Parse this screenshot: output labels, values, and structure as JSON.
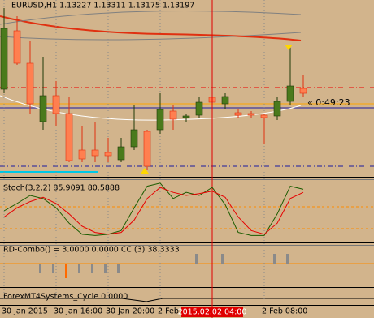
{
  "chart_data": [
    {
      "type": "candlestick",
      "title": "EURUSD,H1  1.13227 1.13311 1.13175 1.13197",
      "categories": [
        "30 Jan 2015",
        null,
        null,
        null,
        "30 Jan 16:00",
        null,
        null,
        null,
        "30 Jan 20:00",
        null,
        null,
        null,
        "2 Feb",
        null,
        null,
        null,
        null,
        null,
        null,
        null,
        "2 Feb 08:00",
        null,
        null,
        null
      ],
      "open": [
        1.13222,
        1.13582,
        1.13382,
        1.13022,
        1.13182,
        1.13072,
        1.12847,
        1.12847,
        1.12832,
        1.12787,
        1.12867,
        1.12962,
        1.12972,
        1.13087,
        1.13047,
        1.13062,
        1.13172,
        1.13132,
        1.13077,
        1.13072,
        1.13062,
        1.13057,
        1.13147,
        1.13227
      ],
      "high": [
        1.13722,
        1.13672,
        1.13522,
        1.13422,
        1.13272,
        1.13172,
        1.12997,
        1.13022,
        1.12922,
        1.12922,
        1.13122,
        1.12972,
        1.13197,
        1.13122,
        1.13072,
        1.13172,
        1.13197,
        1.13197,
        1.13097,
        1.13087,
        1.13072,
        1.13172,
        1.13497,
        1.13311
      ],
      "low": [
        1.13197,
        1.13372,
        1.13072,
        1.12972,
        1.12997,
        1.12772,
        1.12772,
        1.12772,
        1.12772,
        1.12772,
        1.12847,
        1.12722,
        1.12947,
        1.12972,
        1.13022,
        1.13047,
        1.13122,
        1.13097,
        1.13047,
        1.13047,
        1.12882,
        1.13032,
        1.13122,
        1.13175
      ],
      "close": [
        1.13597,
        1.13382,
        1.13132,
        1.13182,
        1.13072,
        1.12782,
        1.12792,
        1.12812,
        1.12812,
        1.12867,
        1.12972,
        1.12747,
        1.13097,
        1.13037,
        1.13057,
        1.13142,
        1.13142,
        1.13177,
        1.13062,
        1.13062,
        1.13047,
        1.13147,
        1.13242,
        1.13197
      ],
      "ylim": [
        1.12697,
        1.13772
      ],
      "up_color": "#4a7a1c",
      "down_color": "#ff7f50",
      "grid": true,
      "crosshair_index": 16,
      "crosshair_label": "2015.02.02 04:00",
      "timer": "« 0:49:23"
    },
    {
      "type": "line",
      "title": "Stoch(3,2,2) 85.9091 80.5888",
      "ylim": [
        0,
        100
      ],
      "series": [
        {
          "color": "#1a5c00",
          "values": [
            50,
            62,
            75,
            70,
            55,
            30,
            12,
            10,
            12,
            18,
            55,
            90,
            95,
            70,
            80,
            75,
            88,
            60,
            15,
            10,
            10,
            45,
            90,
            85
          ]
        },
        {
          "color": "#e60000",
          "values": [
            40,
            55,
            65,
            72,
            62,
            45,
            25,
            15,
            12,
            15,
            35,
            70,
            88,
            80,
            75,
            78,
            82,
            72,
            40,
            18,
            12,
            30,
            70,
            80
          ]
        }
      ]
    },
    {
      "type": "panel",
      "title": "RD-Combo() = 3.0000 0.0000  CCI(3) 38.3333"
    },
    {
      "type": "panel",
      "title": "ForexMT4Systems_Cycle 0.0000"
    }
  ]
}
